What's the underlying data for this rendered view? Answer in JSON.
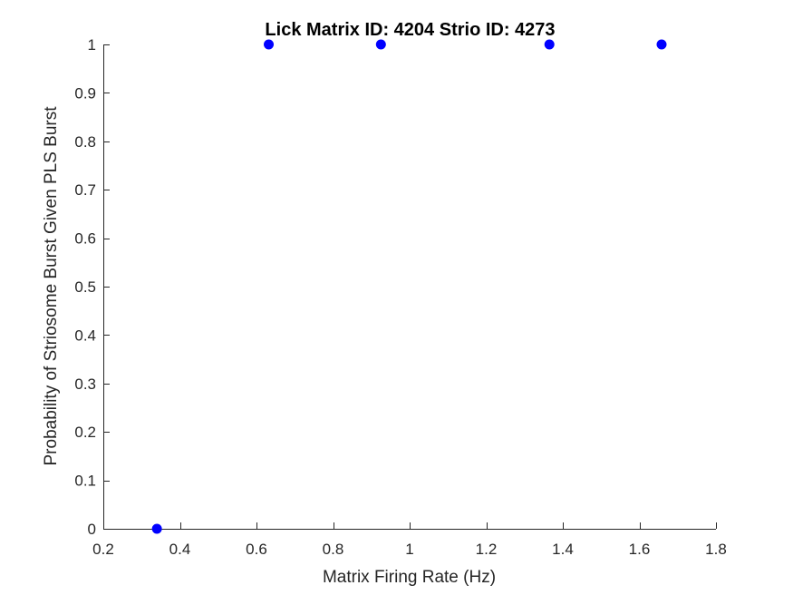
{
  "chart_data": {
    "type": "scatter",
    "title": "Lick Matrix ID: 4204 Strio ID: 4273",
    "xlabel": "Matrix Firing Rate (Hz)",
    "ylabel": "Probability of Striosome Burst Given PLS Burst",
    "xlim": [
      0.2,
      1.8
    ],
    "ylim": [
      0,
      1
    ],
    "xticks": [
      0.2,
      0.4,
      0.6,
      0.8,
      1,
      1.2,
      1.4,
      1.6,
      1.8
    ],
    "xtick_labels": [
      "0.2",
      "0.4",
      "0.6",
      "0.8",
      "1",
      "1.2",
      "1.4",
      "1.6",
      "1.8"
    ],
    "yticks": [
      0,
      0.1,
      0.2,
      0.3,
      0.4,
      0.5,
      0.6,
      0.7,
      0.8,
      0.9,
      1
    ],
    "ytick_labels": [
      "0",
      "0.1",
      "0.2",
      "0.3",
      "0.4",
      "0.5",
      "0.6",
      "0.7",
      "0.8",
      "0.9",
      "1"
    ],
    "grid": false,
    "box": false,
    "series": [
      {
        "color": "#0000ff",
        "points": [
          {
            "x": 0.34,
            "y": 0
          },
          {
            "x": 0.632,
            "y": 1
          },
          {
            "x": 0.925,
            "y": 1
          },
          {
            "x": 1.365,
            "y": 1
          },
          {
            "x": 1.658,
            "y": 1
          }
        ]
      }
    ]
  }
}
